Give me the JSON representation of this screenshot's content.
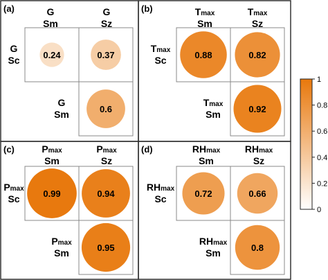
{
  "chart_data": [
    {
      "type": "heatmap",
      "panel_label": "(a)",
      "row_labels": [
        {
          "main": "G",
          "sub": "",
          "site": "Sc"
        },
        {
          "main": "G",
          "sub": "",
          "site": "Sm"
        }
      ],
      "col_labels": [
        {
          "main": "G",
          "sub": "",
          "site": "Sm"
        },
        {
          "main": "G",
          "sub": "",
          "site": "Sz"
        }
      ],
      "cells": [
        {
          "row": 0,
          "col": 0,
          "value": 0.24
        },
        {
          "row": 0,
          "col": 1,
          "value": 0.37
        },
        {
          "row": 1,
          "col": 1,
          "value": 0.6
        }
      ]
    },
    {
      "type": "heatmap",
      "panel_label": "(b)",
      "row_labels": [
        {
          "main": "T",
          "sub": "max",
          "site": "Sc"
        },
        {
          "main": "T",
          "sub": "max",
          "site": "Sm"
        }
      ],
      "col_labels": [
        {
          "main": "T",
          "sub": "max",
          "site": "Sm"
        },
        {
          "main": "T",
          "sub": "max",
          "site": "Sz"
        }
      ],
      "cells": [
        {
          "row": 0,
          "col": 0,
          "value": 0.88
        },
        {
          "row": 0,
          "col": 1,
          "value": 0.82
        },
        {
          "row": 1,
          "col": 1,
          "value": 0.92
        }
      ]
    },
    {
      "type": "heatmap",
      "panel_label": "(c)",
      "row_labels": [
        {
          "main": "P",
          "sub": "max",
          "site": "Sc"
        },
        {
          "main": "P",
          "sub": "max",
          "site": "Sm"
        }
      ],
      "col_labels": [
        {
          "main": "P",
          "sub": "max",
          "site": "Sm"
        },
        {
          "main": "P",
          "sub": "max",
          "site": "Sz"
        }
      ],
      "cells": [
        {
          "row": 0,
          "col": 0,
          "value": 0.99
        },
        {
          "row": 0,
          "col": 1,
          "value": 0.94
        },
        {
          "row": 1,
          "col": 1,
          "value": 0.95
        }
      ]
    },
    {
      "type": "heatmap",
      "panel_label": "(d)",
      "row_labels": [
        {
          "main": "RH",
          "sub": "max",
          "site": "Sc"
        },
        {
          "main": "RH",
          "sub": "max",
          "site": "Sm"
        }
      ],
      "col_labels": [
        {
          "main": "RH",
          "sub": "max",
          "site": "Sm"
        },
        {
          "main": "RH",
          "sub": "max",
          "site": "Sz"
        }
      ],
      "cells": [
        {
          "row": 0,
          "col": 0,
          "value": 0.72
        },
        {
          "row": 0,
          "col": 1,
          "value": 0.66
        },
        {
          "row": 1,
          "col": 1,
          "value": 0.8
        }
      ]
    }
  ],
  "colorbar": {
    "ticks": [
      "1",
      "0.8",
      "0.6",
      "0.4",
      "0.2",
      "0"
    ],
    "range": [
      0,
      1
    ],
    "color_low": "#ffffff",
    "color_high": "#e8780c"
  }
}
